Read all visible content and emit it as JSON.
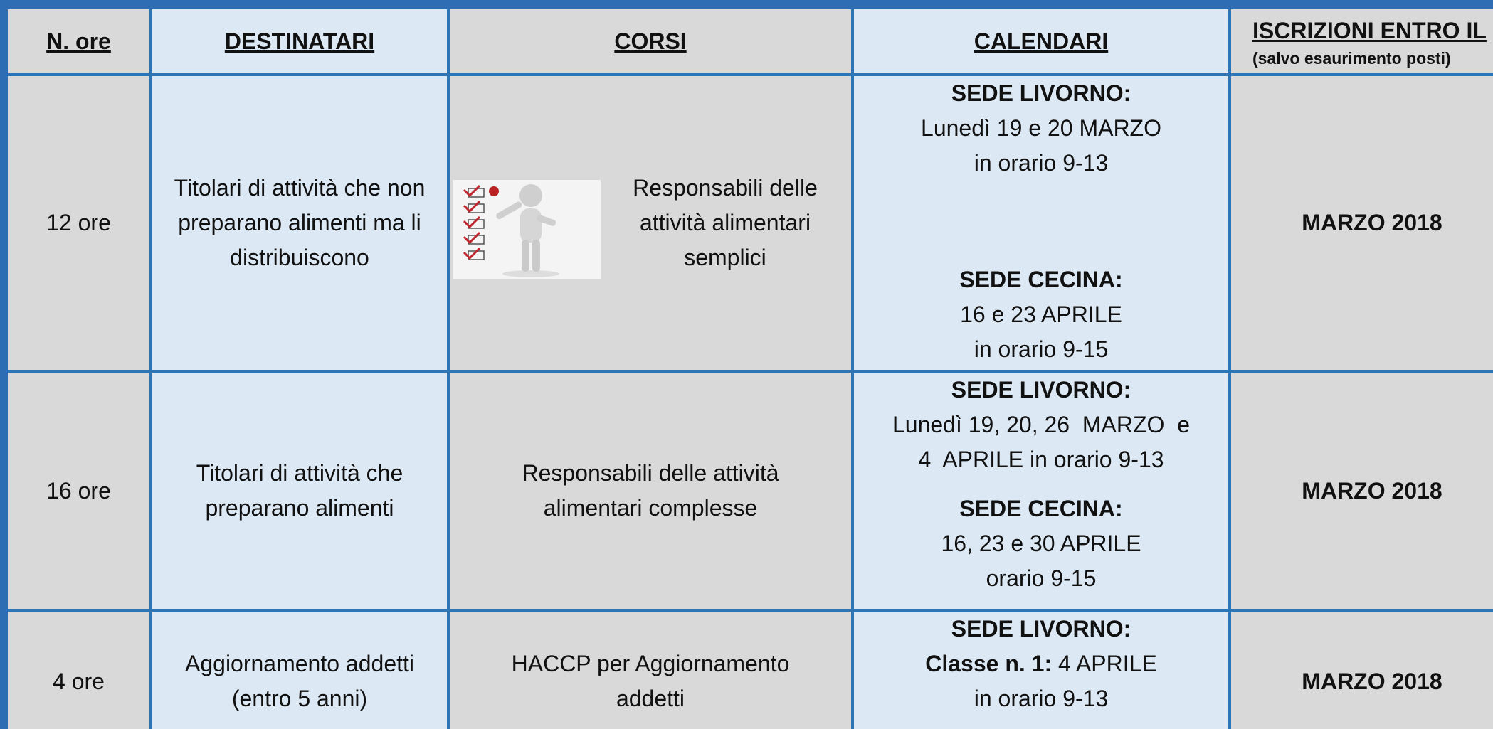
{
  "header": {
    "columns": [
      {
        "title": "N. ore"
      },
      {
        "title": "DESTINATARI"
      },
      {
        "title": "CORSI"
      },
      {
        "title": "CALENDARI"
      },
      {
        "title": "ISCRIZIONI ENTRO IL",
        "subtitle": "(salvo esaurimento posti)"
      }
    ]
  },
  "rows": [
    {
      "hours": "12 ore",
      "recipients": "Titolari di attività che non preparano alimenti ma li distribuiscono",
      "course": "Responsabili delle attività alimentari semplici",
      "calendar": [
        {
          "heading": "SEDE LIVORNO:",
          "lines": [
            {
              "text": "Lunedì 19 e 20 MARZO"
            },
            {
              "text": "in orario 9-13"
            }
          ]
        },
        {
          "heading": "SEDE CECINA:",
          "lines": [
            {
              "text": "16 e 23 APRILE"
            },
            {
              "text": "in orario 9-15"
            }
          ]
        }
      ],
      "deadline": "MARZO 2018"
    },
    {
      "hours": "16 ore",
      "recipients": "Titolari di attività che preparano alimenti",
      "course": "Responsabili delle attività alimentari complesse",
      "calendar": [
        {
          "heading": "SEDE LIVORNO:",
          "lines": [
            {
              "text": "Lunedì 19, 20, 26  MARZO  e"
            },
            {
              "text": "4  APRILE in orario 9-13"
            }
          ]
        },
        {
          "heading": "SEDE CECINA:",
          "lines": [
            {
              "text": "16, 23 e 30 APRILE"
            },
            {
              "text": "orario 9-15"
            }
          ]
        }
      ],
      "deadline": "MARZO 2018"
    },
    {
      "hours": "4 ore",
      "recipients": "Aggiornamento addetti (entro 5 anni)",
      "course": "HACCP per Aggiornamento addetti",
      "calendar": [
        {
          "heading": "SEDE LIVORNO:",
          "lines": [
            {
              "label": "Classe n. 1:",
              "text": "4 APRILE"
            },
            {
              "text": "in orario 9-13"
            }
          ]
        }
      ],
      "deadline": "MARZO 2018"
    }
  ]
}
